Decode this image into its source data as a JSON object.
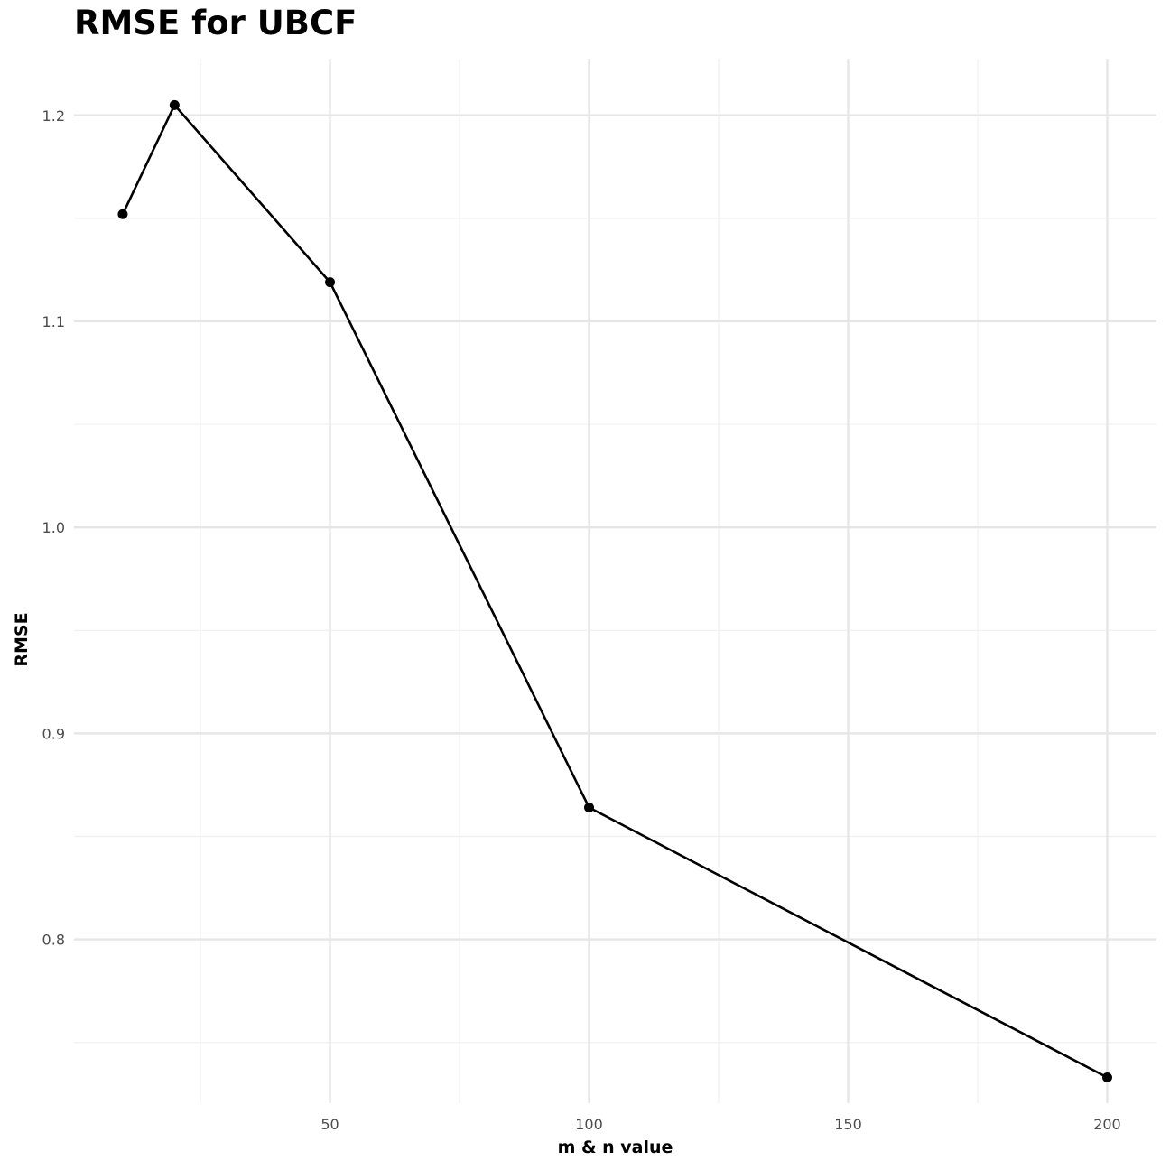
{
  "chart_data": {
    "type": "line",
    "title": "RMSE for UBCF",
    "xlabel": "m & n value",
    "ylabel": "RMSE",
    "x": [
      10,
      20,
      50,
      100,
      200
    ],
    "series": [
      {
        "values": [
          1.152,
          1.205,
          1.119,
          0.864,
          0.733
        ]
      }
    ],
    "xlim": [
      0.6,
      209.5
    ],
    "ylim": [
      0.7205,
      1.2275
    ],
    "x_major_ticks": [
      50,
      100,
      150,
      200
    ],
    "x_minor_ticks": [
      25,
      75,
      125,
      175
    ],
    "x_tick_labels": [
      "50",
      "100",
      "150",
      "200"
    ],
    "y_major_ticks": [
      0.8,
      0.9,
      1.0,
      1.1,
      1.2
    ],
    "y_minor_ticks": [
      0.75,
      0.85,
      0.95,
      1.05,
      1.15
    ],
    "y_tick_labels": [
      "0.8",
      "0.9",
      "1.0",
      "1.1",
      "1.2"
    ],
    "grid": true,
    "legend": "none",
    "colors": {
      "line": "#000000",
      "point": "#000000",
      "grid_major": "#e6e6e6",
      "grid_minor": "#f0f0f0",
      "tick_text": "#4d4d4d"
    }
  }
}
